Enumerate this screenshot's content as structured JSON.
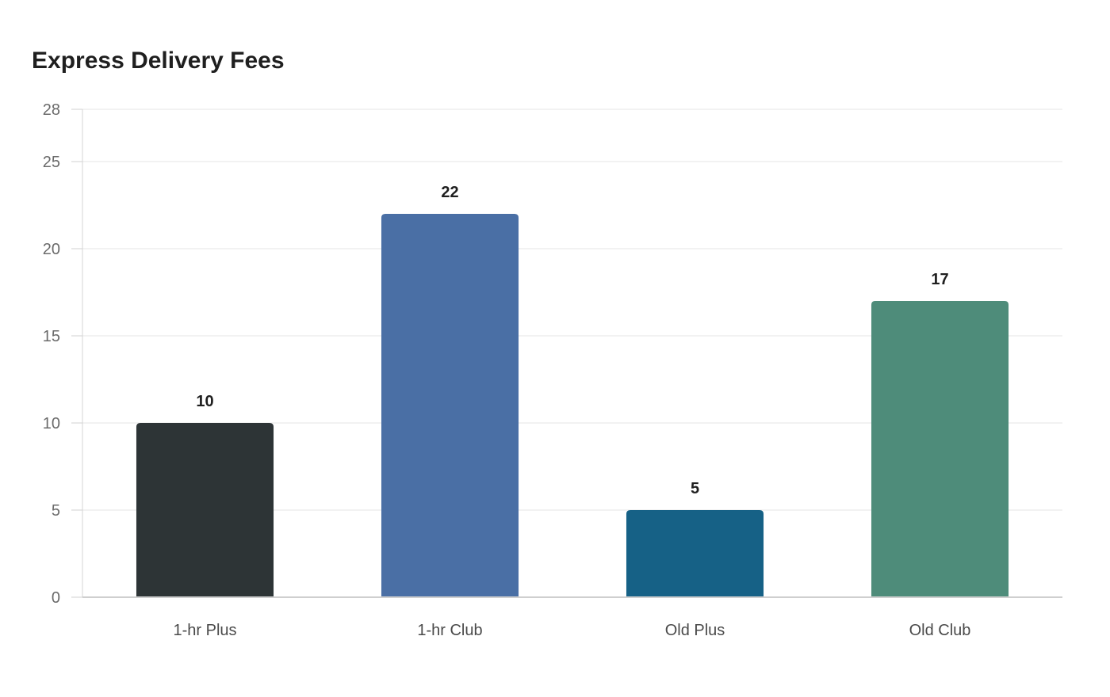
{
  "chart_data": {
    "type": "bar",
    "title": "Express Delivery Fees",
    "categories": [
      "1-hr Plus",
      "1-hr Club",
      "Old Plus",
      "Old Club"
    ],
    "values": [
      10,
      22,
      5,
      17
    ],
    "colors": [
      "#2d3436",
      "#4a6fa5",
      "#166186",
      "#4e8c7a"
    ],
    "ylim": [
      0,
      28
    ],
    "yticks": [
      0,
      5,
      10,
      15,
      20,
      25,
      28
    ],
    "xlabel": "",
    "ylabel": "",
    "grid": true,
    "legend": "none"
  }
}
